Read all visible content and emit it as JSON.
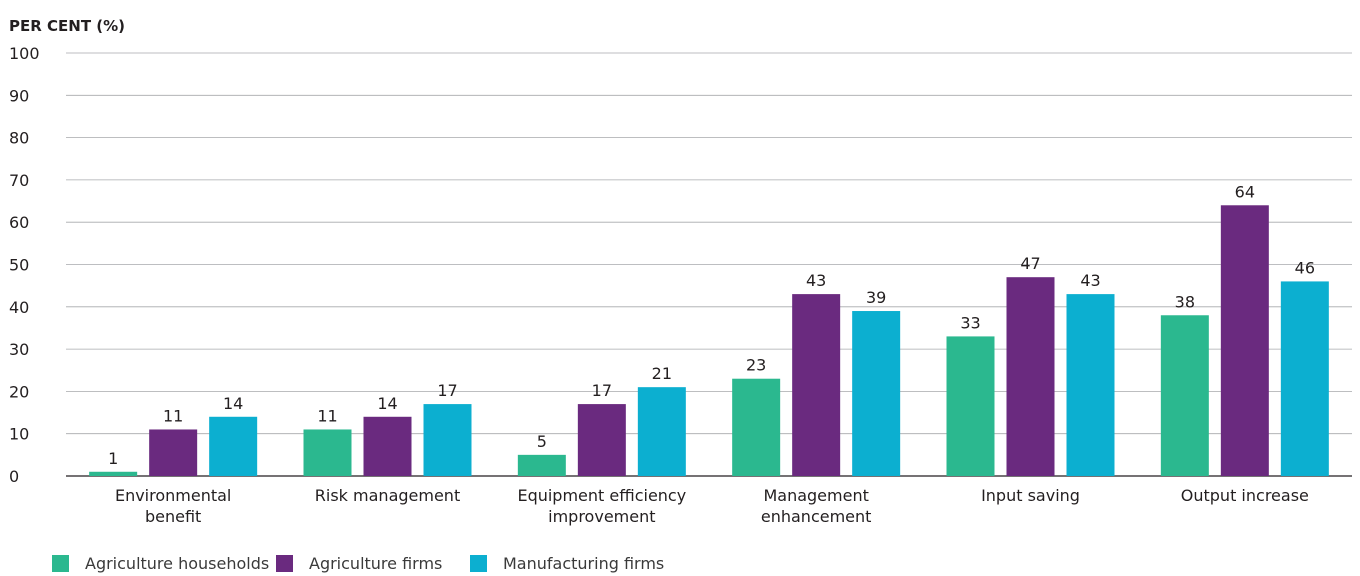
{
  "chart_data": {
    "type": "bar",
    "ylabel": "PER CENT (%)",
    "ylim": [
      0,
      100
    ],
    "yticks": [
      0,
      10,
      20,
      30,
      40,
      50,
      60,
      70,
      80,
      90,
      100
    ],
    "grid": true,
    "legend_position": "bottom-left",
    "categories": [
      [
        "Environmental",
        "benefit"
      ],
      [
        "Risk management"
      ],
      [
        "Equipment efficiency",
        "improvement"
      ],
      [
        "Management",
        "enhancement"
      ],
      [
        "Input saving"
      ],
      [
        "Output increase"
      ]
    ],
    "series": [
      {
        "name": "Agriculture households",
        "color": "#2bb88f",
        "values": [
          1,
          11,
          5,
          23,
          33,
          38
        ]
      },
      {
        "name": "Agriculture firms",
        "color": "#6a2a7f",
        "values": [
          11,
          14,
          17,
          43,
          47,
          64
        ]
      },
      {
        "name": "Manufacturing firms",
        "color": "#0cafd0",
        "values": [
          14,
          17,
          21,
          39,
          43,
          46
        ]
      }
    ]
  }
}
